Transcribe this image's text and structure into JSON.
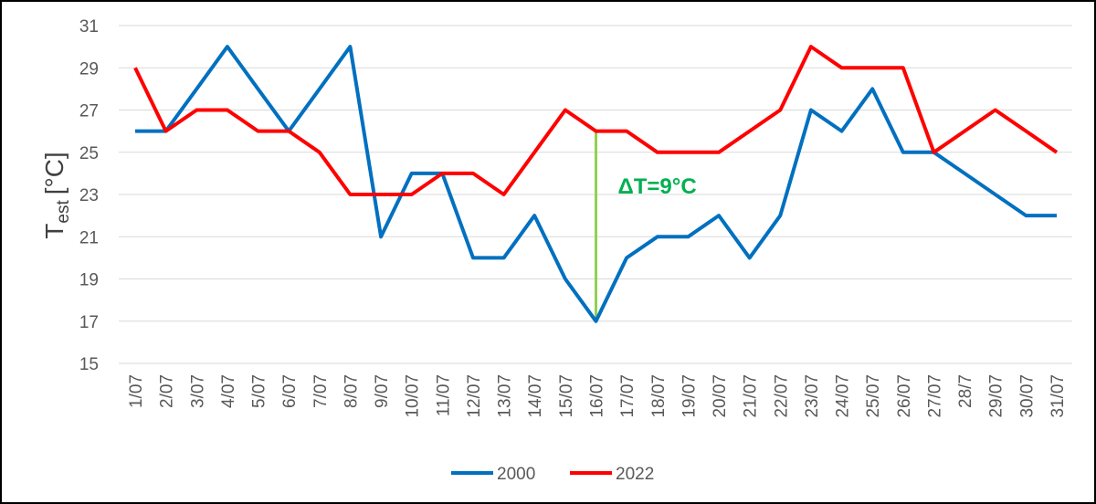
{
  "chart_data": {
    "type": "line",
    "ylabel": {
      "main": "T",
      "sub": "est",
      "unit": "[°C]"
    },
    "ylim": [
      15,
      31
    ],
    "yticks": [
      "15",
      "17",
      "19",
      "21",
      "23",
      "25",
      "27",
      "29",
      "31"
    ],
    "grid": true,
    "legend_position": "bottom",
    "categories": [
      "1/07",
      "2/07",
      "3/07",
      "4/07",
      "5/07",
      "6/07",
      "7/07",
      "8/07",
      "9/07",
      "10/07",
      "11/07",
      "12/07",
      "13/07",
      "14/07",
      "15/07",
      "16/07",
      "17/07",
      "18/07",
      "19/07",
      "20/07",
      "21/07",
      "22/07",
      "23/07",
      "24/07",
      "25/07",
      "26/07",
      "27/07",
      "28/7",
      "29/07",
      "30/07",
      "31/07"
    ],
    "series": [
      {
        "name": "2000",
        "color": "#0070c0",
        "values": [
          26,
          26,
          28,
          30,
          28,
          26,
          28,
          30,
          21,
          24,
          24,
          20,
          20,
          22,
          19,
          17,
          20,
          21,
          21,
          22,
          20,
          22,
          27,
          26,
          28,
          25,
          25,
          24,
          23,
          22,
          22
        ]
      },
      {
        "name": "2022",
        "color": "#ff0000",
        "values": [
          29,
          26,
          27,
          27,
          26,
          26,
          25,
          23,
          23,
          23,
          24,
          24,
          23,
          25,
          27,
          26,
          26,
          25,
          25,
          25,
          26,
          27,
          30,
          29,
          29,
          29,
          25,
          26,
          27,
          26,
          25
        ]
      }
    ],
    "annotation": {
      "text": "ΔT=9°C",
      "color": "#00b050",
      "marker_color": "#92d050",
      "category": "16/07",
      "from": 17,
      "to": 26
    }
  }
}
